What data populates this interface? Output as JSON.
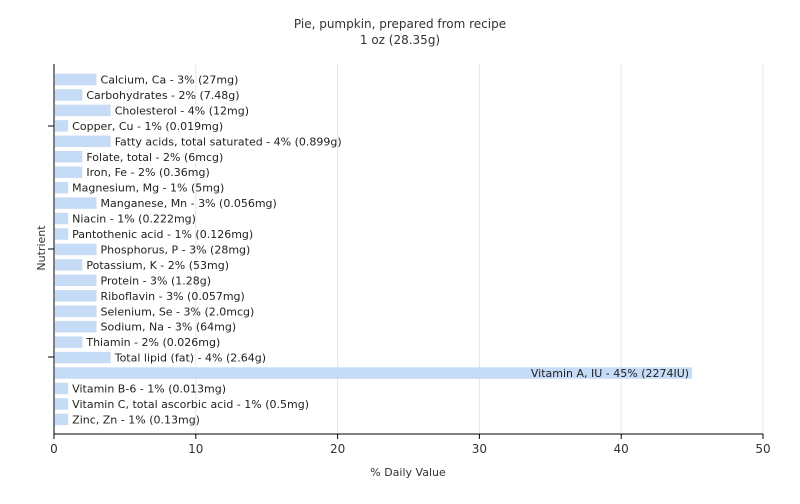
{
  "chart_data": {
    "type": "bar",
    "orientation": "horizontal",
    "title": "Pie, pumpkin, prepared from recipe",
    "subtitle": "1 oz (28.35g)",
    "xlabel": "% Daily Value",
    "ylabel": "Nutrient",
    "xlim": [
      0,
      50
    ],
    "xticks": [
      "0",
      "10",
      "20",
      "30",
      "40",
      "50"
    ],
    "grid": true,
    "legend": "none",
    "bar_color": "#c6dcf6",
    "grid_color": "#e6e6e6",
    "categories": [
      "Calcium, Ca",
      "Carbohydrates",
      "Cholesterol",
      "Copper, Cu",
      "Fatty acids, total saturated",
      "Folate, total",
      "Iron, Fe",
      "Magnesium, Mg",
      "Manganese, Mn",
      "Niacin",
      "Pantothenic acid",
      "Phosphorus, P",
      "Potassium, K",
      "Protein",
      "Riboflavin",
      "Selenium, Se",
      "Sodium, Na",
      "Thiamin",
      "Total lipid (fat)",
      "Vitamin A, IU",
      "Vitamin B-6",
      "Vitamin C, total ascorbic acid",
      "Zinc, Zn"
    ],
    "values": [
      3,
      2,
      4,
      1,
      4,
      2,
      2,
      1,
      3,
      1,
      1,
      3,
      2,
      3,
      3,
      3,
      3,
      2,
      4,
      45,
      1,
      1,
      1
    ],
    "labels": [
      "Calcium, Ca - 3% (27mg)",
      "Carbohydrates - 2% (7.48g)",
      "Cholesterol - 4% (12mg)",
      "Copper, Cu - 1% (0.019mg)",
      "Fatty acids, total saturated - 4% (0.899g)",
      "Folate, total - 2% (6mcg)",
      "Iron, Fe - 2% (0.36mg)",
      "Magnesium, Mg - 1% (5mg)",
      "Manganese, Mn - 3% (0.056mg)",
      "Niacin - 1% (0.222mg)",
      "Pantothenic acid - 1% (0.126mg)",
      "Phosphorus, P - 3% (28mg)",
      "Potassium, K - 2% (53mg)",
      "Protein - 3% (1.28g)",
      "Riboflavin - 3% (0.057mg)",
      "Selenium, Se - 3% (2.0mcg)",
      "Sodium, Na - 3% (64mg)",
      "Thiamin - 2% (0.026mg)",
      "Total lipid (fat) - 4% (2.64g)",
      "Vitamin A, IU - 45% (2274IU)",
      "Vitamin B-6 - 1% (0.013mg)",
      "Vitamin C, total ascorbic acid - 1% (0.5mg)",
      "Zinc, Zn - 1% (0.13mg)"
    ]
  }
}
